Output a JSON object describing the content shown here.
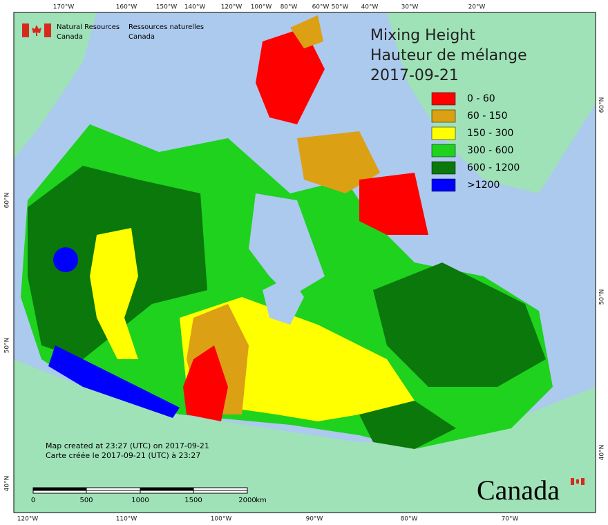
{
  "header": {
    "org_en": [
      "Natural Resources",
      "Canada"
    ],
    "org_fr": [
      "Ressources naturelles",
      "Canada"
    ]
  },
  "title": [
    "Mixing Height",
    "Hauteur de mélange",
    "2017-09-21"
  ],
  "legend": [
    {
      "label": "0 - 60",
      "color": "#ff0000"
    },
    {
      "label": "60 - 150",
      "color": "#dca014"
    },
    {
      "label": "150 - 300",
      "color": "#ffff00"
    },
    {
      "label": "300 - 600",
      "color": "#1ed21e"
    },
    {
      "label": "600 - 1200",
      "color": "#0a780a"
    },
    {
      "label": ">1200",
      "color": "#0000ff"
    }
  ],
  "top_longitudes": [
    "170°W",
    "160°W",
    "150°W",
    "140°W",
    "120°W",
    "100°W",
    "80°W",
    "60°W",
    "50°W",
    "40°W",
    "30°W",
    "20°W"
  ],
  "bottom_longitudes": [
    "120°W",
    "110°W",
    "100°W",
    "90°W",
    "80°W",
    "70°W"
  ],
  "left_latitudes": [
    "60°N",
    "50°N",
    "40°N"
  ],
  "right_latitudes": [
    "60°N",
    "50°N",
    "40°N"
  ],
  "credits": [
    "Map created at 23:27 (UTC) on 2017-09-21",
    "Carte créée le 2017-09-21 (UTC) à 23:27"
  ],
  "scale": {
    "labels": [
      "0",
      "500",
      "1000",
      "1500",
      "2000"
    ],
    "unit": "km"
  },
  "wordmark": "Canada"
}
